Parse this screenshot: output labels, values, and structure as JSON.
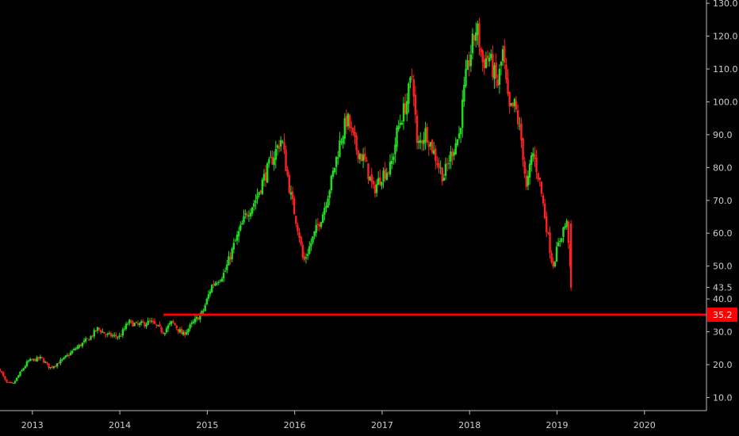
{
  "chart_data": {
    "type": "candlestick",
    "up_color": "#22dd22",
    "down_color": "#ff2020",
    "background": "#000000",
    "grid": false,
    "ylim": [
      6.0,
      131.0
    ],
    "y_ticks": [
      {
        "value": 130.0,
        "label": "130.0"
      },
      {
        "value": 120.0,
        "label": "120.0"
      },
      {
        "value": 110.0,
        "label": "110.0"
      },
      {
        "value": 100.0,
        "label": "100.0"
      },
      {
        "value": 90.0,
        "label": "90.0"
      },
      {
        "value": 80.0,
        "label": "80.0"
      },
      {
        "value": 70.0,
        "label": "70.0"
      },
      {
        "value": 60.0,
        "label": "60.0"
      },
      {
        "value": 50.0,
        "label": "50.0"
      },
      {
        "value": 40.0,
        "label": "40.0"
      },
      {
        "value": 30.0,
        "label": "30.0"
      },
      {
        "value": 20.0,
        "label": "20.0"
      },
      {
        "value": 10.0,
        "label": "10.0"
      }
    ],
    "x_ticks": [
      {
        "value": 2013,
        "label": "2013"
      },
      {
        "value": 2014,
        "label": "2014"
      },
      {
        "value": 2015,
        "label": "2015"
      },
      {
        "value": 2016,
        "label": "2016"
      },
      {
        "value": 2017,
        "label": "2017"
      },
      {
        "value": 2018,
        "label": "2018"
      },
      {
        "value": 2019,
        "label": "2019"
      },
      {
        "value": 2020,
        "label": "2020"
      }
    ],
    "xlim": [
      2012.63,
      2020.7
    ],
    "last_price_label": {
      "value": 43.5,
      "label": "43.5"
    },
    "horizontal_line": {
      "value": 35.2,
      "label": "35.2",
      "color": "#ff0000",
      "start_x": 2014.5
    },
    "price_path": [
      [
        2012.63,
        18.5
      ],
      [
        2012.7,
        14.5
      ],
      [
        2012.78,
        14.0
      ],
      [
        2012.85,
        17.0
      ],
      [
        2012.95,
        21.0
      ],
      [
        2013.1,
        22.0
      ],
      [
        2013.2,
        19.0
      ],
      [
        2013.35,
        21.5
      ],
      [
        2013.5,
        25.0
      ],
      [
        2013.65,
        28.0
      ],
      [
        2013.75,
        31.0
      ],
      [
        2013.85,
        29.0
      ],
      [
        2014.0,
        28.5
      ],
      [
        2014.1,
        33.0
      ],
      [
        2014.2,
        32.0
      ],
      [
        2014.35,
        33.0
      ],
      [
        2014.5,
        30.0
      ],
      [
        2014.6,
        33.0
      ],
      [
        2014.72,
        29.0
      ],
      [
        2014.85,
        33.0
      ],
      [
        2014.95,
        36.0
      ],
      [
        2015.05,
        44.0
      ],
      [
        2015.2,
        48.0
      ],
      [
        2015.3,
        56.0
      ],
      [
        2015.45,
        66.0
      ],
      [
        2015.55,
        70.0
      ],
      [
        2015.65,
        77.0
      ],
      [
        2015.75,
        83.0
      ],
      [
        2015.85,
        89.0
      ],
      [
        2015.95,
        72.0
      ],
      [
        2016.05,
        60.0
      ],
      [
        2016.1,
        51.0
      ],
      [
        2016.2,
        58.0
      ],
      [
        2016.32,
        66.0
      ],
      [
        2016.42,
        76.0
      ],
      [
        2016.52,
        88.0
      ],
      [
        2016.6,
        95.0
      ],
      [
        2016.7,
        86.0
      ],
      [
        2016.8,
        82.0
      ],
      [
        2016.9,
        73.0
      ],
      [
        2017.0,
        78.0
      ],
      [
        2017.1,
        80.0
      ],
      [
        2017.18,
        92.0
      ],
      [
        2017.28,
        100.0
      ],
      [
        2017.35,
        109.0
      ],
      [
        2017.4,
        86.0
      ],
      [
        2017.5,
        91.0
      ],
      [
        2017.6,
        84.0
      ],
      [
        2017.7,
        77.0
      ],
      [
        2017.8,
        85.0
      ],
      [
        2017.88,
        90.0
      ],
      [
        2017.95,
        106.0
      ],
      [
        2018.02,
        116.0
      ],
      [
        2018.08,
        123.0
      ],
      [
        2018.15,
        112.0
      ],
      [
        2018.22,
        114.0
      ],
      [
        2018.32,
        105.0
      ],
      [
        2018.38,
        115.0
      ],
      [
        2018.45,
        97.0
      ],
      [
        2018.52,
        99.0
      ],
      [
        2018.6,
        87.0
      ],
      [
        2018.65,
        73.0
      ],
      [
        2018.72,
        85.0
      ],
      [
        2018.8,
        76.0
      ],
      [
        2018.88,
        62.0
      ],
      [
        2018.95,
        50.0
      ],
      [
        2019.02,
        57.0
      ],
      [
        2019.08,
        62.0
      ],
      [
        2019.12,
        63.0
      ],
      [
        2019.16,
        43.5
      ]
    ]
  }
}
